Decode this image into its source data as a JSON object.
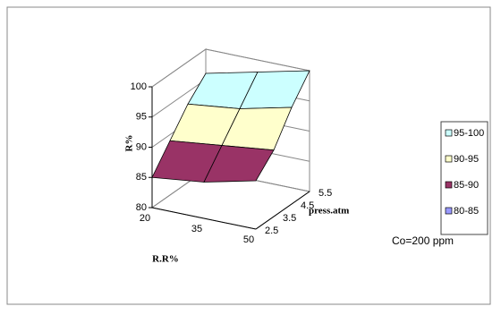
{
  "chart_data": {
    "type": "surface",
    "z_label": "R%",
    "x_label": "R.R%",
    "y_label": "press.atm",
    "categories": [
      "20",
      "35",
      "50"
    ],
    "depth_categories": [
      "2.5",
      "3.5",
      "4.5",
      "5.5"
    ],
    "values": [
      [
        85,
        86,
        88
      ],
      [
        89,
        90,
        91
      ],
      [
        93,
        94,
        96
      ],
      [
        96,
        98,
        100
      ]
    ],
    "zlim": [
      80,
      100
    ],
    "zticks": [
      80,
      85,
      90,
      95,
      100
    ],
    "grid": true,
    "legend": {
      "position": "right",
      "items": [
        {
          "label": "95-100",
          "color": "#ccffff"
        },
        {
          "label": "90-95",
          "color": "#ffffcc"
        },
        {
          "label": "85-90",
          "color": "#993366"
        },
        {
          "label": "80-85",
          "color": "#9999ff"
        }
      ]
    },
    "annotation": "Co=200 ppm"
  }
}
